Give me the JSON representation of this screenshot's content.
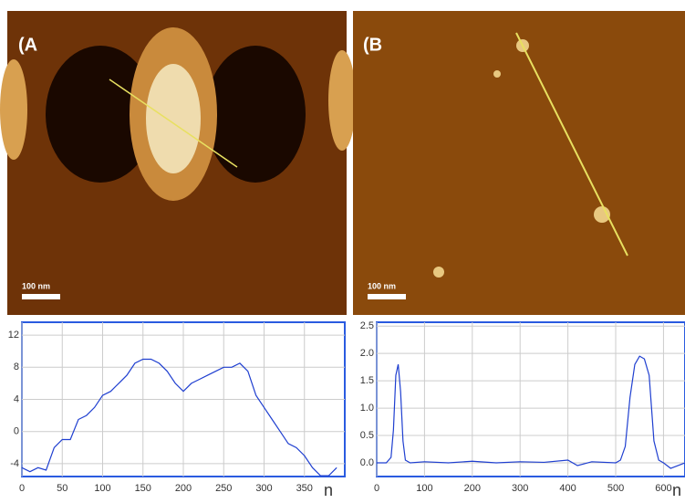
{
  "panels": [
    {
      "label": "(A",
      "scale_bar": "100 nm"
    },
    {
      "label": "(B",
      "scale_bar": "100 nm"
    }
  ],
  "chart_data": [
    {
      "type": "line",
      "xlabel": "n",
      "x": [
        0,
        10,
        20,
        30,
        40,
        50,
        60,
        70,
        80,
        90,
        100,
        110,
        120,
        130,
        140,
        150,
        160,
        170,
        180,
        190,
        200,
        210,
        220,
        230,
        240,
        250,
        260,
        270,
        280,
        290,
        300,
        310,
        320,
        330,
        340,
        350,
        360,
        370,
        380,
        390
      ],
      "series": [
        {
          "color": "#1f3fd0",
          "values": [
            -4.5,
            -5,
            -4.5,
            -4.8,
            -2,
            -1,
            -1,
            1.5,
            2,
            3,
            4.5,
            5,
            6,
            7,
            8.5,
            9,
            9,
            8.5,
            7.5,
            6,
            5,
            6,
            6.5,
            7,
            7.5,
            8,
            8,
            8.5,
            7.5,
            4.5,
            3,
            1.5,
            0,
            -1.5,
            -2,
            -3,
            -4.5,
            -5.5,
            -5.5,
            -4.5
          ]
        }
      ],
      "xlim": [
        0,
        400
      ],
      "xticks": [
        0,
        50,
        100,
        150,
        200,
        250,
        300,
        350
      ],
      "ylim": [
        -5.6,
        13.6
      ],
      "yticks": [
        -4,
        0,
        4,
        8,
        12
      ],
      "grid": true
    },
    {
      "type": "line",
      "xlabel": "n",
      "x": [
        0,
        10,
        20,
        30,
        35,
        40,
        45,
        50,
        55,
        60,
        70,
        100,
        150,
        200,
        250,
        300,
        350,
        400,
        420,
        450,
        500,
        510,
        520,
        530,
        540,
        550,
        560,
        570,
        575,
        580,
        590,
        600,
        615,
        630,
        645
      ],
      "series": [
        {
          "color": "#1f3fd0",
          "values": [
            0,
            0,
            0,
            0.1,
            0.6,
            1.6,
            1.8,
            1.3,
            0.4,
            0.05,
            0,
            0.02,
            0,
            0.03,
            0,
            0.02,
            0.01,
            0.05,
            -0.05,
            0.02,
            0,
            0.05,
            0.3,
            1.2,
            1.8,
            1.95,
            1.9,
            1.6,
            1.0,
            0.4,
            0.05,
            0,
            -0.1,
            -0.05,
            0
          ]
        }
      ],
      "xlim": [
        0,
        645
      ],
      "xticks": [
        0,
        100,
        200,
        300,
        400,
        500,
        600
      ],
      "ylim": [
        -0.25,
        2.57
      ],
      "yticks": [
        {
          "value": 0,
          "label": "0.0"
        },
        {
          "value": 0.5,
          "label": "0.5"
        },
        {
          "value": 1,
          "label": "1.0"
        },
        {
          "value": 1.5,
          "label": "1.5"
        },
        {
          "value": 2,
          "label": "2.0"
        },
        {
          "value": 2.5,
          "label": "2.5"
        }
      ],
      "grid": true
    }
  ]
}
